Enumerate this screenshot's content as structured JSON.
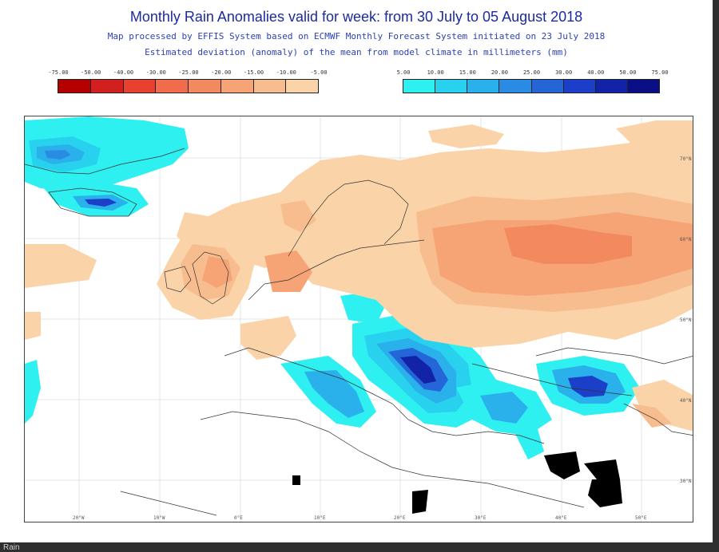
{
  "title": "Monthly Rain Anomalies valid for week: from 30 July to 05 August 2018",
  "subtitle_1": "Map processed by EFFIS System based on ECMWF Monthly Forecast System initiated on 23 July 2018",
  "subtitle_2": "Estimated deviation (anomaly) of the mean from model climate in millimeters (mm)",
  "legend_negative": {
    "labels": [
      "-75.00",
      "-50.00",
      "-40.00",
      "-30.00",
      "-25.00",
      "-20.00",
      "-15.00",
      "-10.00",
      "-5.00"
    ],
    "colors": [
      "#b40000",
      "#d21f1f",
      "#e8412f",
      "#f06c4a",
      "#f38a5f",
      "#f6a476",
      "#f8bd8f",
      "#fbd3a8"
    ]
  },
  "legend_positive": {
    "labels": [
      "5.00",
      "10.00",
      "15.00",
      "20.00",
      "25.00",
      "30.00",
      "40.00",
      "50.00",
      "75.00"
    ],
    "colors": [
      "#2ef0f0",
      "#28d2ee",
      "#2ab0ea",
      "#2a8be4",
      "#2466d8",
      "#1b3fc8",
      "#1223a8",
      "#0a0f86"
    ]
  },
  "longitude_labels": [
    "20°W",
    "10°W",
    "0°E",
    "10°E",
    "20°E",
    "30°E",
    "40°E",
    "50°E"
  ],
  "latitude_labels": [
    "70°N",
    "60°N",
    "50°N",
    "40°N",
    "30°N"
  ],
  "bottom_caption": "Rain"
}
